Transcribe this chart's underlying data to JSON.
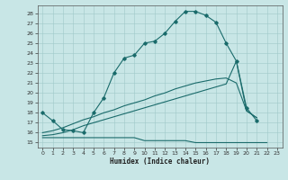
{
  "title": "",
  "xlabel": "Humidex (Indice chaleur)",
  "bg_color": "#c8e6e6",
  "grid_color": "#9fc9c9",
  "line_color": "#1a6b6b",
  "xlim": [
    -0.5,
    23.5
  ],
  "ylim": [
    14.5,
    28.8
  ],
  "xticks": [
    0,
    1,
    2,
    3,
    4,
    5,
    6,
    7,
    8,
    9,
    10,
    11,
    12,
    13,
    14,
    15,
    16,
    17,
    18,
    19,
    20,
    21,
    22,
    23
  ],
  "yticks": [
    15,
    16,
    17,
    18,
    19,
    20,
    21,
    22,
    23,
    24,
    25,
    26,
    27,
    28
  ],
  "curve1_x": [
    0,
    1,
    2,
    3,
    4,
    5,
    6,
    7,
    8,
    9,
    10,
    11,
    12,
    13,
    14,
    15,
    16,
    17,
    18,
    19,
    20,
    21
  ],
  "curve1_y": [
    18.0,
    17.2,
    16.3,
    16.2,
    16.0,
    18.0,
    19.5,
    22.0,
    23.5,
    23.8,
    25.0,
    25.2,
    26.0,
    27.2,
    28.2,
    28.2,
    27.8,
    27.1,
    25.0,
    23.2,
    18.5,
    17.2
  ],
  "curve2_x": [
    0,
    1,
    2,
    3,
    4,
    5,
    6,
    7,
    8,
    9,
    10,
    11,
    12,
    13,
    14,
    15,
    16,
    17,
    18,
    19,
    20,
    21,
    22
  ],
  "curve2_y": [
    15.5,
    15.5,
    15.5,
    15.5,
    15.5,
    15.5,
    15.5,
    15.5,
    15.5,
    15.5,
    15.2,
    15.2,
    15.2,
    15.2,
    15.2,
    15.0,
    15.0,
    15.0,
    15.0,
    15.0,
    15.0,
    15.0,
    15.0
  ],
  "curve3_x": [
    0,
    1,
    2,
    3,
    4,
    5,
    6,
    7,
    8,
    9,
    10,
    11,
    12,
    13,
    14,
    15,
    16,
    17,
    18,
    19,
    20,
    21
  ],
  "curve3_y": [
    16.0,
    16.2,
    16.5,
    16.9,
    17.3,
    17.6,
    18.0,
    18.3,
    18.7,
    19.0,
    19.3,
    19.7,
    20.0,
    20.4,
    20.7,
    21.0,
    21.2,
    21.4,
    21.5,
    21.0,
    18.2,
    17.5
  ],
  "curve4_x": [
    0,
    1,
    2,
    3,
    4,
    5,
    6,
    7,
    8,
    9,
    10,
    11,
    12,
    13,
    14,
    15,
    16,
    17,
    18,
    19,
    20,
    21
  ],
  "curve4_y": [
    15.7,
    15.8,
    16.0,
    16.3,
    16.7,
    17.0,
    17.3,
    17.6,
    17.9,
    18.2,
    18.5,
    18.8,
    19.1,
    19.4,
    19.7,
    20.0,
    20.3,
    20.6,
    20.9,
    23.2,
    18.2,
    17.5
  ]
}
